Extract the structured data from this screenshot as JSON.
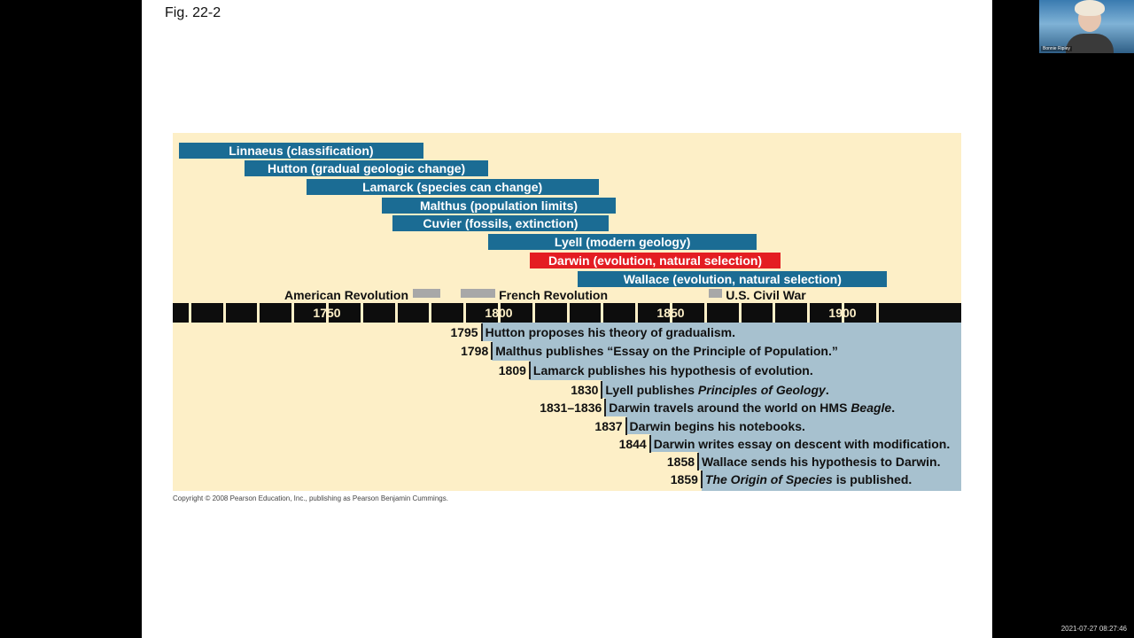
{
  "figure_label": "Fig. 22-2",
  "people": [
    {
      "label": "Linnaeus (classification)",
      "color": "blue",
      "start": 1707,
      "end": 1778
    },
    {
      "label": "Hutton (gradual geologic change)",
      "color": "blue",
      "start": 1726,
      "end": 1797
    },
    {
      "label": "Lamarck (species can change)",
      "color": "blue",
      "start": 1744,
      "end": 1829
    },
    {
      "label": "Malthus (population limits)",
      "color": "blue",
      "start": 1766,
      "end": 1834
    },
    {
      "label": "Cuvier (fossils, extinction)",
      "color": "blue",
      "start": 1769,
      "end": 1832
    },
    {
      "label": "Lyell (modern geology)",
      "color": "blue",
      "start": 1797,
      "end": 1875
    },
    {
      "label": "Darwin (evolution, natural selection)",
      "color": "red",
      "start": 1809,
      "end": 1882
    },
    {
      "label": "Wallace (evolution, natural selection)",
      "color": "blue",
      "start": 1823,
      "end": 1913
    }
  ],
  "historical_events": [
    {
      "label": "American Revolution",
      "start": 1775,
      "end": 1783,
      "label_side": "left"
    },
    {
      "label": "French Revolution",
      "start": 1789,
      "end": 1799,
      "label_side": "right"
    },
    {
      "label": "U.S. Civil War",
      "start": 1861,
      "end": 1865,
      "label_side": "right"
    }
  ],
  "axis": {
    "ticks": [
      "1750",
      "1800",
      "1850",
      "1900"
    ]
  },
  "milestones": [
    {
      "year": "1795",
      "year_value": 1795,
      "text": [
        {
          "t": "Hutton proposes his theory of gradualism."
        }
      ]
    },
    {
      "year": "1798",
      "year_value": 1798,
      "text": [
        {
          "t": "Malthus publishes “Essay on the Principle of Population.”"
        }
      ]
    },
    {
      "year": "1809",
      "year_value": 1809,
      "text": [
        {
          "t": "Lamarck publishes his hypothesis of evolution."
        }
      ]
    },
    {
      "year": "1830",
      "year_value": 1830,
      "text": [
        {
          "t": "Lyell publishes "
        },
        {
          "t": "Principles of Geology",
          "i": true
        },
        {
          "t": "."
        }
      ]
    },
    {
      "year": "1831–1836",
      "year_value": 1831,
      "text": [
        {
          "t": "Darwin travels around the world on HMS "
        },
        {
          "t": "Beagle",
          "i": true
        },
        {
          "t": "."
        }
      ]
    },
    {
      "year": "1837",
      "year_value": 1837,
      "text": [
        {
          "t": "Darwin begins his notebooks."
        }
      ]
    },
    {
      "year": "1844",
      "year_value": 1844,
      "text": [
        {
          "t": "Darwin writes essay on descent with modification."
        }
      ]
    },
    {
      "year": "1858",
      "year_value": 1858,
      "text": [
        {
          "t": "Wallace sends his hypothesis to Darwin."
        }
      ]
    },
    {
      "year": "1859",
      "year_value": 1859,
      "text": [
        {
          "t": "The Origin of Species",
          "i": true
        },
        {
          "t": " is published."
        }
      ]
    }
  ],
  "copyright": "Copyright © 2008 Pearson Education, Inc., publishing as Pearson Benjamin Cummings.",
  "webcam_name": "Bonnie Ripley",
  "timestamp": "2021-07-27 08:27:46"
}
